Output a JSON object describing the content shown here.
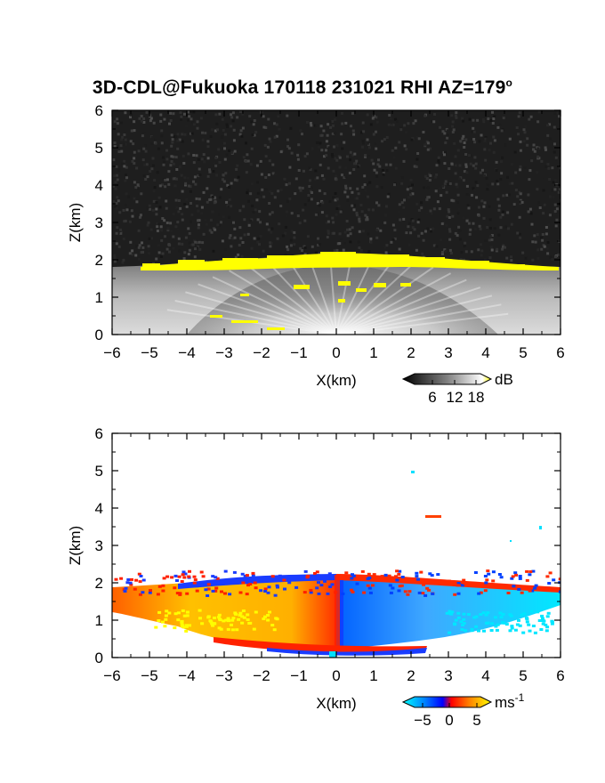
{
  "title": "3D-CDL@Fukuoka 170118 231021 RHI AZ=179",
  "title_sup": "o",
  "chart_data": [
    {
      "type": "heatmap",
      "name": "backscatter",
      "xlabel": "X(km)",
      "ylabel": "Z(km)",
      "xlim": [
        -6,
        6
      ],
      "ylim": [
        0,
        6
      ],
      "xticks": [
        "-6",
        "-5",
        "-4",
        "-3",
        "-2",
        "-1",
        "0",
        "1",
        "2",
        "3",
        "4",
        "5",
        "6"
      ],
      "yticks": [
        "0",
        "1",
        "2",
        "3",
        "4",
        "5",
        "6"
      ],
      "colorbar": {
        "unit": "dB",
        "ticks": [
          "6",
          "12",
          "18"
        ],
        "colors": [
          "#000000",
          "#404040",
          "#808080",
          "#c0c0c0",
          "#ffffff",
          "#ffff00"
        ]
      },
      "background": "#1e1e1e",
      "features": {
        "aerosol_layer_top_km": 1.8,
        "saturated_layer_km": [
          1.6,
          2.0
        ],
        "saturated_color": "#ffff00"
      }
    },
    {
      "type": "heatmap",
      "name": "doppler_velocity",
      "xlabel": "X(km)",
      "ylabel": "Z(km)",
      "xlim": [
        -6,
        6
      ],
      "ylim": [
        0,
        6
      ],
      "xticks": [
        "-6",
        "-5",
        "-4",
        "-3",
        "-2",
        "-1",
        "0",
        "1",
        "2",
        "3",
        "4",
        "5",
        "6"
      ],
      "yticks": [
        "0",
        "1",
        "2",
        "3",
        "4",
        "5",
        "6"
      ],
      "colorbar": {
        "unit": "ms",
        "unit_sup": "-1",
        "ticks": [
          "-5",
          "0",
          "5"
        ],
        "colors": [
          "#00ffff",
          "#0080ff",
          "#0000ff",
          "#ff0000",
          "#ff8000",
          "#ffff00"
        ]
      },
      "features": {
        "layer_top_km": 1.9,
        "negative_side": "x>0",
        "positive_side": "x<0"
      }
    }
  ]
}
